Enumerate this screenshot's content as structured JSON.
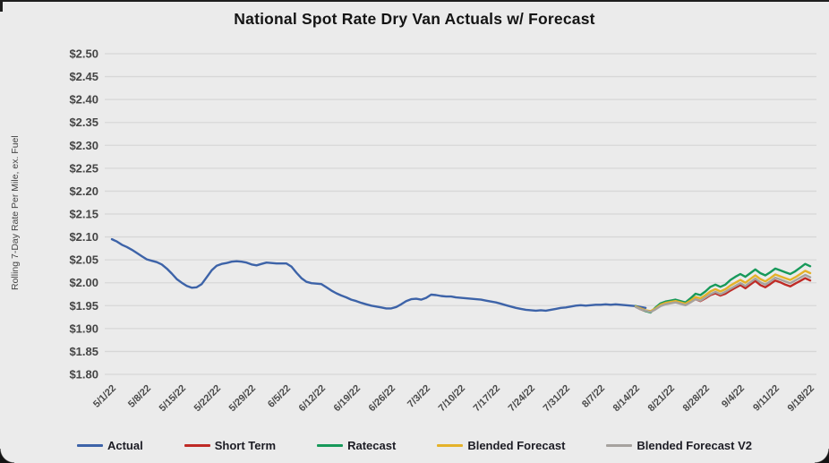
{
  "chart": {
    "title": "National Spot Rate Dry Van Actuals w/ Forecast"
  },
  "chart_data": {
    "type": "line",
    "title": "National Spot Rate Dry Van Actuals w/ Forecast",
    "xlabel": "",
    "ylabel": "Rolling 7-Day Rate Per Mile, ex. Fuel",
    "ylim": [
      1.8,
      2.5
    ],
    "y_tick_step": 0.05,
    "y_tick_prefix": "$",
    "grid": true,
    "gridline_color": "#d7d7d7",
    "axis_text_color": "#454545",
    "legend_position": "bottom",
    "x_domain_days": [
      0,
      140
    ],
    "x_tick_days": [
      0,
      7,
      14,
      21,
      28,
      35,
      42,
      49,
      56,
      63,
      70,
      77,
      84,
      91,
      98,
      105,
      112,
      119,
      126,
      133,
      140
    ],
    "x_tick_labels": [
      "5/1/22",
      "5/8/22",
      "5/15/22",
      "5/22/22",
      "5/29/22",
      "6/5/22",
      "6/12/22",
      "6/19/22",
      "6/26/22",
      "7/3/22",
      "7/10/22",
      "7/17/22",
      "7/24/22",
      "7/31/22",
      "8/7/22",
      "8/14/22",
      "8/21/22",
      "8/28/22",
      "9/4/22",
      "9/11/22",
      "9/18/22"
    ],
    "series": [
      {
        "name": "Actual",
        "color": "#3d63a8",
        "start_day": 0,
        "values": [
          2.095,
          2.09,
          2.083,
          2.078,
          2.072,
          2.065,
          2.058,
          2.051,
          2.048,
          2.045,
          2.04,
          2.031,
          2.02,
          2.008,
          2.0,
          1.993,
          1.989,
          1.99,
          1.997,
          2.012,
          2.027,
          2.037,
          2.041,
          2.043,
          2.046,
          2.047,
          2.046,
          2.044,
          2.04,
          2.038,
          2.041,
          2.044,
          2.043,
          2.042,
          2.042,
          2.042,
          2.035,
          2.022,
          2.01,
          2.002,
          1.999,
          1.998,
          1.997,
          1.99,
          1.983,
          1.977,
          1.972,
          1.968,
          1.963,
          1.96,
          1.956,
          1.953,
          1.95,
          1.948,
          1.946,
          1.944,
          1.944,
          1.947,
          1.953,
          1.96,
          1.964,
          1.965,
          1.963,
          1.967,
          1.974,
          1.973,
          1.971,
          1.97,
          1.97,
          1.968,
          1.967,
          1.966,
          1.965,
          1.964,
          1.963,
          1.961,
          1.959,
          1.957,
          1.954,
          1.951,
          1.948,
          1.945,
          1.943,
          1.941,
          1.94,
          1.939,
          1.94,
          1.939,
          1.941,
          1.943,
          1.945,
          1.946,
          1.948,
          1.95,
          1.951,
          1.95,
          1.951,
          1.952,
          1.952,
          1.953,
          1.952,
          1.953,
          1.952,
          1.951,
          1.95,
          1.949,
          1.947,
          1.945
        ]
      },
      {
        "name": "Short Term",
        "color": "#bf2a25",
        "start_day": 105,
        "values": [
          1.948,
          1.942,
          1.938,
          1.937,
          1.943,
          1.95,
          1.954,
          1.956,
          1.958,
          1.955,
          1.952,
          1.958,
          1.964,
          1.96,
          1.966,
          1.973,
          1.977,
          1.972,
          1.976,
          1.983,
          1.989,
          1.995,
          1.988,
          1.996,
          2.004,
          1.995,
          1.99,
          1.997,
          2.005,
          2.001,
          1.996,
          1.992,
          1.998,
          2.004,
          2.01,
          2.005
        ]
      },
      {
        "name": "Ratecast",
        "color": "#17995a",
        "start_day": 105,
        "values": [
          1.949,
          1.943,
          1.938,
          1.935,
          1.946,
          1.955,
          1.959,
          1.961,
          1.963,
          1.96,
          1.957,
          1.966,
          1.976,
          1.973,
          1.981,
          1.991,
          1.996,
          1.991,
          1.996,
          2.006,
          2.013,
          2.019,
          2.013,
          2.021,
          2.029,
          2.021,
          2.016,
          2.023,
          2.031,
          2.027,
          2.023,
          2.019,
          2.025,
          2.033,
          2.041,
          2.036
        ]
      },
      {
        "name": "Blended Forecast",
        "color": "#e4b22a",
        "start_day": 105,
        "values": [
          1.948,
          1.944,
          1.94,
          1.938,
          1.944,
          1.952,
          1.956,
          1.958,
          1.96,
          1.957,
          1.954,
          1.961,
          1.969,
          1.966,
          1.973,
          1.981,
          1.986,
          1.981,
          1.986,
          1.994,
          2.0,
          2.006,
          2.0,
          2.008,
          2.016,
          2.008,
          2.003,
          2.01,
          2.018,
          2.014,
          2.01,
          2.006,
          2.012,
          2.019,
          2.026,
          2.021
        ]
      },
      {
        "name": "Blended Forecast V2",
        "color": "#a6a29e",
        "start_day": 105,
        "values": [
          1.947,
          1.942,
          1.939,
          1.936,
          1.942,
          1.949,
          1.953,
          1.955,
          1.957,
          1.954,
          1.951,
          1.957,
          1.964,
          1.961,
          1.968,
          1.975,
          1.98,
          1.975,
          1.98,
          1.987,
          1.993,
          1.999,
          1.993,
          2.001,
          2.009,
          2.001,
          1.996,
          2.003,
          2.011,
          2.007,
          2.003,
          1.999,
          2.005,
          2.011,
          2.017,
          2.012
        ]
      }
    ]
  }
}
